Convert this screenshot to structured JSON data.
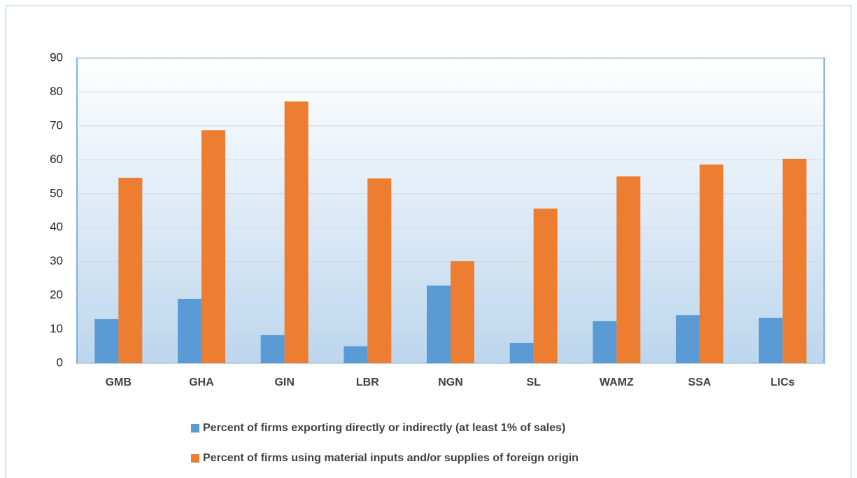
{
  "chart_data": {
    "type": "bar",
    "categories": [
      "GMB",
      "GHA",
      "GIN",
      "LBR",
      "NGN",
      "SL",
      "WAMZ",
      "SSA",
      "LICs"
    ],
    "series": [
      {
        "name": "Percent of firms exporting directly or indirectly (at least 1% of sales)",
        "color": "#5b9bd5",
        "values": [
          13.0,
          19.0,
          8.3,
          5.0,
          22.9,
          6.0,
          12.4,
          14.2,
          13.4
        ]
      },
      {
        "name": "Percent of firms using material inputs and/or supplies of foreign origin",
        "color": "#ed7d31",
        "values": [
          54.7,
          68.7,
          77.2,
          54.5,
          30.1,
          45.6,
          55.1,
          58.6,
          60.3
        ]
      }
    ],
    "ylim": [
      0,
      90
    ],
    "yticks": [
      0,
      10,
      20,
      30,
      40,
      50,
      60,
      70,
      80,
      90
    ],
    "grid": true
  }
}
